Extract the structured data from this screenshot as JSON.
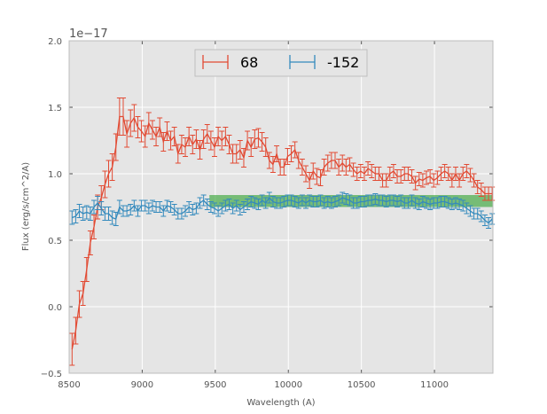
{
  "chart_data": {
    "type": "line",
    "title": "",
    "xlabel": "Wavelength (A)",
    "ylabel": "Flux (erg/s/cm^2/A)",
    "y_offset_label": "1e−17",
    "xlim": [
      8500,
      11400
    ],
    "ylim": [
      -0.5,
      2.0
    ],
    "xticks": [
      8500,
      9000,
      9500,
      10000,
      10500,
      11000
    ],
    "xtick_labels": [
      "8500",
      "9000",
      "9500",
      "10000",
      "10500",
      "11000"
    ],
    "yticks": [
      -0.5,
      0.0,
      0.5,
      1.0,
      1.5,
      2.0
    ],
    "ytick_labels": [
      "−0.5",
      "0.0",
      "0.5",
      "1.0",
      "1.5",
      "2.0"
    ],
    "grid": true,
    "legend_position": "upper-center",
    "band": {
      "x_start": 9460,
      "x_end": 11400,
      "y_low": 0.75,
      "y_high": 0.84,
      "color": "#2ca02c"
    },
    "series": [
      {
        "name": "68",
        "color": "#e24a33",
        "x": [
          8520,
          8545,
          8570,
          8595,
          8620,
          8645,
          8670,
          8695,
          8720,
          8745,
          8770,
          8795,
          8820,
          8845,
          8870,
          8895,
          8920,
          8945,
          8970,
          8995,
          9020,
          9045,
          9070,
          9095,
          9120,
          9145,
          9170,
          9195,
          9220,
          9245,
          9270,
          9295,
          9320,
          9345,
          9370,
          9395,
          9420,
          9445,
          9470,
          9495,
          9520,
          9545,
          9570,
          9595,
          9620,
          9645,
          9670,
          9695,
          9720,
          9745,
          9770,
          9795,
          9820,
          9845,
          9870,
          9895,
          9920,
          9945,
          9970,
          9995,
          10020,
          10045,
          10070,
          10095,
          10120,
          10145,
          10170,
          10195,
          10220,
          10245,
          10270,
          10295,
          10320,
          10345,
          10370,
          10395,
          10420,
          10445,
          10470,
          10495,
          10520,
          10545,
          10570,
          10595,
          10620,
          10645,
          10670,
          10695,
          10720,
          10745,
          10770,
          10795,
          10820,
          10845,
          10870,
          10895,
          10920,
          10945,
          10970,
          10995,
          11020,
          11045,
          11070,
          11095,
          11120,
          11145,
          11170,
          11195,
          11220,
          11245,
          11270,
          11295,
          11320,
          11345,
          11370,
          11395
        ],
        "y": [
          -0.32,
          -0.18,
          0.02,
          0.1,
          0.28,
          0.48,
          0.6,
          0.75,
          0.82,
          0.92,
          1.0,
          1.05,
          1.2,
          1.43,
          1.43,
          1.3,
          1.38,
          1.42,
          1.35,
          1.32,
          1.28,
          1.38,
          1.33,
          1.28,
          1.35,
          1.24,
          1.32,
          1.25,
          1.28,
          1.15,
          1.22,
          1.2,
          1.28,
          1.22,
          1.26,
          1.18,
          1.26,
          1.3,
          1.25,
          1.2,
          1.28,
          1.25,
          1.28,
          1.22,
          1.15,
          1.15,
          1.18,
          1.12,
          1.25,
          1.2,
          1.26,
          1.27,
          1.24,
          1.2,
          1.1,
          1.07,
          1.15,
          1.05,
          1.05,
          1.13,
          1.15,
          1.18,
          1.1,
          1.05,
          1.0,
          0.95,
          1.02,
          0.98,
          0.97,
          1.05,
          1.08,
          1.1,
          1.1,
          1.05,
          1.08,
          1.05,
          1.07,
          1.03,
          1.0,
          1.02,
          1.0,
          1.04,
          1.02,
          1.0,
          1.0,
          0.95,
          0.95,
          1.0,
          1.02,
          0.98,
          0.98,
          1.0,
          1.0,
          0.98,
          0.93,
          0.96,
          0.95,
          0.97,
          0.98,
          0.95,
          0.97,
          1.0,
          1.02,
          1.0,
          0.95,
          1.0,
          0.95,
          1.0,
          1.02,
          0.99,
          0.95,
          0.9,
          0.88,
          0.85,
          0.85,
          0.85
        ],
        "err": [
          0.12,
          0.1,
          0.1,
          0.09,
          0.09,
          0.09,
          0.09,
          0.09,
          0.09,
          0.1,
          0.1,
          0.1,
          0.1,
          0.14,
          0.14,
          0.1,
          0.1,
          0.1,
          0.08,
          0.08,
          0.08,
          0.08,
          0.07,
          0.07,
          0.07,
          0.07,
          0.07,
          0.07,
          0.07,
          0.07,
          0.07,
          0.07,
          0.07,
          0.07,
          0.07,
          0.07,
          0.07,
          0.07,
          0.07,
          0.07,
          0.07,
          0.07,
          0.07,
          0.07,
          0.07,
          0.07,
          0.07,
          0.07,
          0.07,
          0.07,
          0.07,
          0.07,
          0.07,
          0.07,
          0.06,
          0.06,
          0.06,
          0.06,
          0.06,
          0.06,
          0.06,
          0.06,
          0.06,
          0.06,
          0.06,
          0.06,
          0.06,
          0.06,
          0.06,
          0.06,
          0.06,
          0.06,
          0.06,
          0.06,
          0.06,
          0.06,
          0.05,
          0.05,
          0.05,
          0.05,
          0.05,
          0.05,
          0.05,
          0.05,
          0.05,
          0.05,
          0.05,
          0.05,
          0.05,
          0.05,
          0.05,
          0.05,
          0.05,
          0.05,
          0.05,
          0.05,
          0.05,
          0.05,
          0.05,
          0.05,
          0.05,
          0.05,
          0.05,
          0.05,
          0.05,
          0.05,
          0.05,
          0.05,
          0.05,
          0.05,
          0.05,
          0.05,
          0.05,
          0.05,
          0.05,
          0.05
        ]
      },
      {
        "name": "-152",
        "color": "#348abd",
        "x": [
          8520,
          8545,
          8570,
          8595,
          8620,
          8645,
          8670,
          8695,
          8720,
          8745,
          8770,
          8795,
          8820,
          8845,
          8870,
          8895,
          8920,
          8945,
          8970,
          8995,
          9020,
          9045,
          9070,
          9095,
          9120,
          9145,
          9170,
          9195,
          9220,
          9245,
          9270,
          9295,
          9320,
          9345,
          9370,
          9395,
          9420,
          9445,
          9470,
          9495,
          9520,
          9545,
          9570,
          9595,
          9620,
          9645,
          9670,
          9695,
          9720,
          9745,
          9770,
          9795,
          9820,
          9845,
          9870,
          9895,
          9920,
          9945,
          9970,
          9995,
          10020,
          10045,
          10070,
          10095,
          10120,
          10145,
          10170,
          10195,
          10220,
          10245,
          10270,
          10295,
          10320,
          10345,
          10370,
          10395,
          10420,
          10445,
          10470,
          10495,
          10520,
          10545,
          10570,
          10595,
          10620,
          10645,
          10670,
          10695,
          10720,
          10745,
          10770,
          10795,
          10820,
          10845,
          10870,
          10895,
          10920,
          10945,
          10970,
          10995,
          11020,
          11045,
          11070,
          11095,
          11120,
          11145,
          11170,
          11195,
          11220,
          11245,
          11270,
          11295,
          11320,
          11345,
          11370,
          11395
        ],
        "y": [
          0.67,
          0.68,
          0.72,
          0.7,
          0.71,
          0.7,
          0.75,
          0.78,
          0.74,
          0.7,
          0.7,
          0.67,
          0.66,
          0.75,
          0.72,
          0.72,
          0.73,
          0.76,
          0.72,
          0.76,
          0.76,
          0.74,
          0.76,
          0.75,
          0.75,
          0.72,
          0.76,
          0.75,
          0.73,
          0.7,
          0.7,
          0.72,
          0.75,
          0.73,
          0.74,
          0.78,
          0.8,
          0.77,
          0.75,
          0.74,
          0.72,
          0.74,
          0.76,
          0.77,
          0.74,
          0.76,
          0.73,
          0.75,
          0.77,
          0.79,
          0.78,
          0.77,
          0.8,
          0.78,
          0.82,
          0.79,
          0.78,
          0.78,
          0.79,
          0.8,
          0.8,
          0.79,
          0.78,
          0.8,
          0.78,
          0.8,
          0.79,
          0.79,
          0.8,
          0.78,
          0.79,
          0.78,
          0.79,
          0.8,
          0.82,
          0.81,
          0.8,
          0.78,
          0.78,
          0.79,
          0.79,
          0.8,
          0.8,
          0.81,
          0.8,
          0.8,
          0.79,
          0.8,
          0.8,
          0.79,
          0.8,
          0.78,
          0.78,
          0.8,
          0.78,
          0.77,
          0.79,
          0.78,
          0.77,
          0.78,
          0.78,
          0.79,
          0.79,
          0.78,
          0.77,
          0.78,
          0.77,
          0.76,
          0.74,
          0.72,
          0.7,
          0.7,
          0.68,
          0.65,
          0.63,
          0.66
        ],
        "err": [
          0.05,
          0.05,
          0.05,
          0.05,
          0.05,
          0.05,
          0.05,
          0.05,
          0.05,
          0.05,
          0.05,
          0.05,
          0.05,
          0.05,
          0.04,
          0.04,
          0.04,
          0.04,
          0.04,
          0.04,
          0.04,
          0.04,
          0.04,
          0.04,
          0.04,
          0.04,
          0.04,
          0.04,
          0.04,
          0.04,
          0.04,
          0.04,
          0.04,
          0.04,
          0.04,
          0.04,
          0.04,
          0.04,
          0.04,
          0.04,
          0.04,
          0.04,
          0.04,
          0.04,
          0.04,
          0.04,
          0.04,
          0.04,
          0.04,
          0.04,
          0.04,
          0.04,
          0.04,
          0.04,
          0.04,
          0.04,
          0.04,
          0.04,
          0.04,
          0.04,
          0.04,
          0.04,
          0.04,
          0.04,
          0.04,
          0.04,
          0.04,
          0.04,
          0.04,
          0.04,
          0.04,
          0.04,
          0.04,
          0.04,
          0.04,
          0.04,
          0.04,
          0.04,
          0.04,
          0.04,
          0.04,
          0.04,
          0.04,
          0.04,
          0.04,
          0.04,
          0.04,
          0.04,
          0.04,
          0.04,
          0.04,
          0.04,
          0.04,
          0.04,
          0.04,
          0.04,
          0.04,
          0.04,
          0.04,
          0.04,
          0.04,
          0.04,
          0.04,
          0.04,
          0.04,
          0.04,
          0.04,
          0.04,
          0.04,
          0.04,
          0.04,
          0.04,
          0.04,
          0.04,
          0.04,
          0.04
        ]
      }
    ]
  }
}
